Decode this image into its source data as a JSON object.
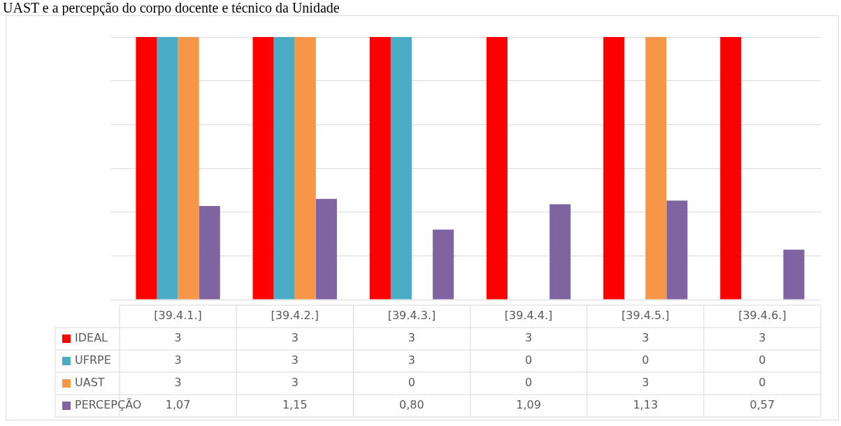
{
  "chart_data": {
    "type": "bar",
    "title": "UAST e a percepção do corpo docente e técnico da Unidade",
    "categories": [
      "[39.4.1.]",
      "[39.4.2.]",
      "[39.4.3.]",
      "[39.4.4.]",
      "[39.4.5.]",
      "[39.4.6.]"
    ],
    "series": [
      {
        "name": "IDEAL",
        "color": "#ff0000",
        "values": [
          3,
          3,
          3,
          3,
          3,
          3
        ],
        "value_labels": [
          "3",
          "3",
          "3",
          "3",
          "3",
          "3"
        ]
      },
      {
        "name": "UFRPE",
        "color": "#4bacc6",
        "values": [
          3,
          3,
          3,
          0,
          0,
          0
        ],
        "value_labels": [
          "3",
          "3",
          "3",
          "0",
          "0",
          "0"
        ]
      },
      {
        "name": "UAST",
        "color": "#f79646",
        "values": [
          3,
          3,
          0,
          0,
          3,
          0
        ],
        "value_labels": [
          "3",
          "3",
          "0",
          "0",
          "3",
          "0"
        ]
      },
      {
        "name": "PERCEPÇÃO",
        "color": "#8064a2",
        "values": [
          1.07,
          1.15,
          0.8,
          1.09,
          1.13,
          0.57
        ],
        "value_labels": [
          "1,07",
          "1,15",
          "0,80",
          "1,09",
          "1,13",
          "0,57"
        ]
      }
    ],
    "ylim": [
      0,
      3
    ],
    "yticks": [
      {
        "value": 0,
        "label": null
      },
      {
        "value": 0.5,
        "label": null
      },
      {
        "value": 1,
        "label": null
      },
      {
        "value": 1.5,
        "label": null
      },
      {
        "value": 2,
        "label": null
      },
      {
        "value": 2.5,
        "label": null
      },
      {
        "value": 3,
        "label": null
      }
    ],
    "tick_labels": "x",
    "grid": "y",
    "legend": "bottom"
  }
}
